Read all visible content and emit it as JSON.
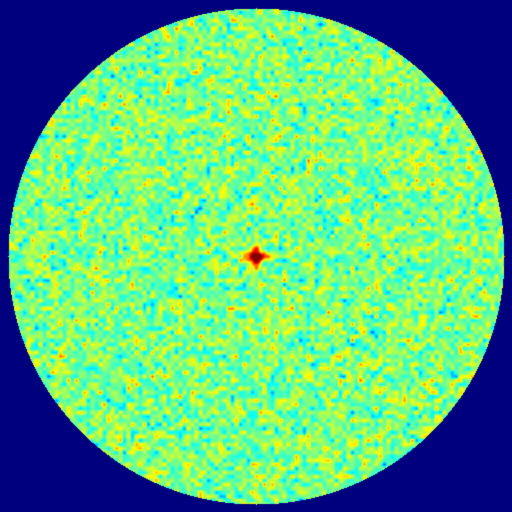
{
  "image": {
    "background_color": "#00007f",
    "colormap": "jet",
    "colormap_stops": [
      "#00007f",
      "#0000ff",
      "#00ffff",
      "#ffff00",
      "#ff0000",
      "#7f0000"
    ],
    "field_shape": "circle",
    "field_description_values": {
      "mean_level": 0.5,
      "noise_spread": 0.11,
      "center_peak_level": 1.0
    },
    "center_feature": {
      "shape": "four-lobed star",
      "peak_color": "#7f0000"
    }
  }
}
